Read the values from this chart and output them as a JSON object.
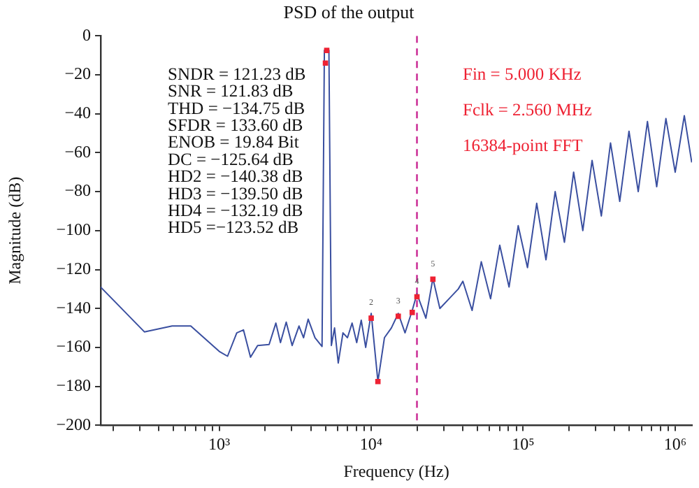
{
  "chart_data": {
    "type": "line",
    "title": "PSD of the output",
    "xlabel": "Frequency (Hz)",
    "ylabel": "Magnitude (dB)",
    "log": "x",
    "grid": false,
    "legend": false,
    "xlim": [
      166,
      1290000
    ],
    "ylim": [
      -200,
      0
    ],
    "xticks": [
      {
        "value": 200,
        "label": null
      },
      {
        "value": 300,
        "label": null
      },
      {
        "value": 400,
        "label": null
      },
      {
        "value": 500,
        "label": null
      },
      {
        "value": 600,
        "label": null
      },
      {
        "value": 700,
        "label": null
      },
      {
        "value": 800,
        "label": null
      },
      {
        "value": 900,
        "label": null
      },
      {
        "value": 1000,
        "label": "10³"
      },
      {
        "value": 2000,
        "label": null
      },
      {
        "value": 3000,
        "label": null
      },
      {
        "value": 4000,
        "label": null
      },
      {
        "value": 5000,
        "label": null
      },
      {
        "value": 6000,
        "label": null
      },
      {
        "value": 7000,
        "label": null
      },
      {
        "value": 8000,
        "label": null
      },
      {
        "value": 9000,
        "label": null
      },
      {
        "value": 10000,
        "label": "10⁴"
      },
      {
        "value": 20000,
        "label": null
      },
      {
        "value": 30000,
        "label": null
      },
      {
        "value": 40000,
        "label": null
      },
      {
        "value": 50000,
        "label": null
      },
      {
        "value": 60000,
        "label": null
      },
      {
        "value": 70000,
        "label": null
      },
      {
        "value": 80000,
        "label": null
      },
      {
        "value": 90000,
        "label": null
      },
      {
        "value": 100000,
        "label": "10⁵"
      },
      {
        "value": 200000,
        "label": null
      },
      {
        "value": 300000,
        "label": null
      },
      {
        "value": 400000,
        "label": null
      },
      {
        "value": 500000,
        "label": null
      },
      {
        "value": 600000,
        "label": null
      },
      {
        "value": 700000,
        "label": null
      },
      {
        "value": 800000,
        "label": null
      },
      {
        "value": 900000,
        "label": null
      },
      {
        "value": 1000000,
        "label": "10⁶"
      }
    ],
    "yticks": [
      0,
      -20,
      -40,
      -60,
      -80,
      -100,
      -120,
      -140,
      -160,
      -180,
      -200
    ],
    "series": [
      {
        "marker": "none",
        "color": "#3a4fa0",
        "x": [
          166,
          322,
          490,
          650,
          1000,
          1135,
          1305,
          1445,
          1607,
          1790,
          2130,
          2360,
          2530,
          2760,
          3020,
          3350,
          3590,
          3850,
          4270,
          4750,
          4920,
          5100,
          5270,
          5470,
          5740,
          6070,
          6520,
          6980,
          7490,
          8030,
          8600,
          9200,
          10000,
          11070,
          12220,
          13570,
          15070,
          16700,
          18620,
          20000,
          22900,
          25460,
          28300,
          32500,
          37400,
          40100,
          46100,
          53000,
          61000,
          70100,
          80700,
          92700,
          106700,
          122700,
          141200,
          162300,
          186700,
          214700,
          246700,
          283900,
          326600,
          375400,
          431700,
          496600,
          571200,
          656800,
          755500,
          868900,
          1000000,
          1148000,
          1285000
        ],
        "values": [
          -129,
          -152,
          -149,
          -149,
          -162,
          -164.5,
          -152.5,
          -151,
          -165,
          -159,
          -158.5,
          -147.5,
          -157.5,
          -147,
          -159,
          -149,
          -155,
          -145.5,
          -155,
          -159.5,
          -7.5,
          -7.5,
          -7.5,
          -159,
          -150,
          -168,
          -152.5,
          -155,
          -147.5,
          -157.5,
          -146,
          -160,
          -142.5,
          -177.5,
          -155,
          -150,
          -142.5,
          -152.5,
          -141,
          -132.5,
          -145,
          -124.5,
          -140,
          -135,
          -130,
          -126,
          -141,
          -116,
          -135,
          -107.5,
          -129,
          -97.5,
          -119,
          -86,
          -115,
          -80,
          -106,
          -70,
          -100,
          -64,
          -92.5,
          -55,
          -85,
          -49,
          -80,
          -44,
          -77.5,
          -42.5,
          -70,
          -41,
          -65
        ]
      },
      {
        "type": "scatter",
        "marker": "square",
        "color": "#ee2233",
        "x": [
          5100,
          5000,
          10000,
          11070,
          15070,
          18620,
          20000,
          25460
        ],
        "values": [
          -7.5,
          -14,
          -145,
          -177.5,
          -144,
          -142,
          -134,
          -125
        ]
      }
    ],
    "ref_lines": [
      {
        "axis": "x",
        "value": 20000,
        "color": "#cc3399",
        "line_style": "dashed"
      }
    ],
    "annotations": [
      "SNDR = 121.23 dB",
      "SNR = 121.83 dB",
      "THD = −134.75 dB",
      "SFDR = 133.60 dB",
      "ENOB = 19.84 Bit",
      "DC = −125.64 dB",
      "HD2 = −140.38 dB",
      "HD3 = −139.50 dB",
      "HD4 = −132.19 dB",
      "HD5 =−123.52 dB",
      "Fin = 5.000 KHz",
      "Fclk = 2.560 MHz",
      "16384-point FFT",
      {
        "text": "2",
        "x": 10000,
        "y": -145
      },
      {
        "text": "3",
        "x": 15070,
        "y": -144
      },
      {
        "text": "4",
        "x": 20000,
        "y": -134
      },
      {
        "text": "5",
        "x": 25460,
        "y": -125
      }
    ]
  }
}
